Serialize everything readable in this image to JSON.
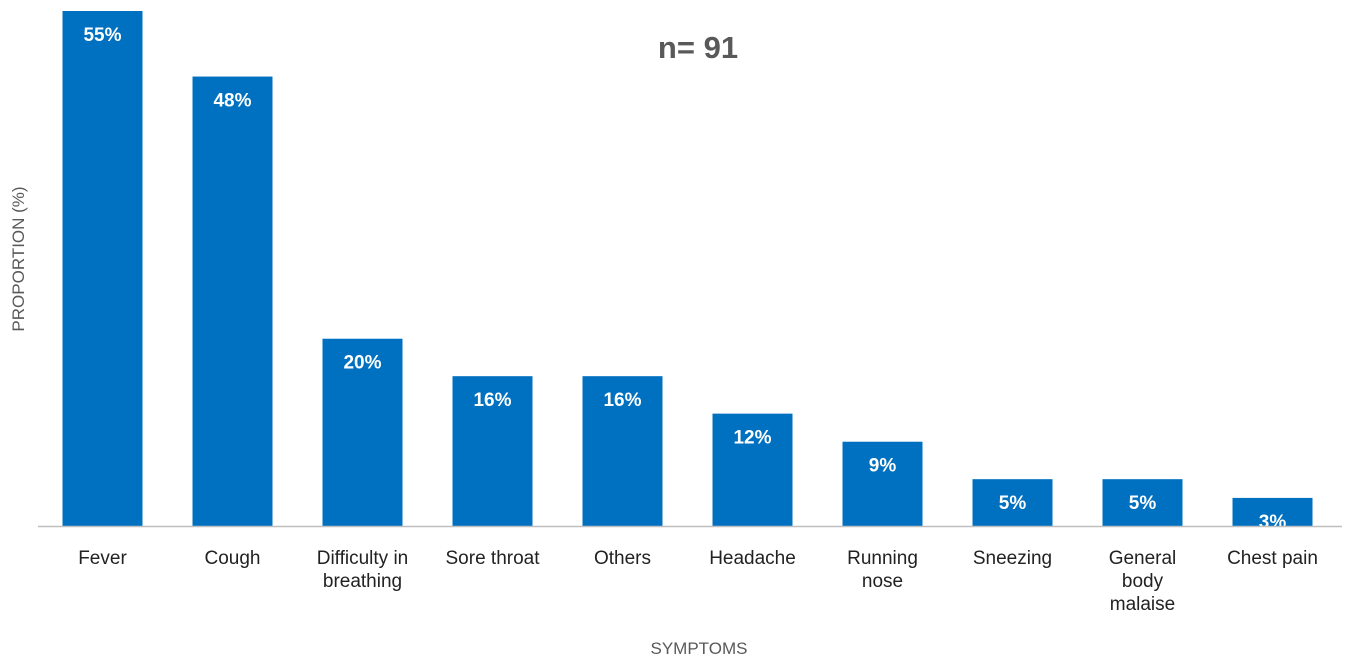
{
  "chart_data": {
    "type": "bar",
    "categories": [
      [
        "Fever"
      ],
      [
        "Cough"
      ],
      [
        "Difficulty in",
        "breathing"
      ],
      [
        "Sore throat"
      ],
      [
        "Others"
      ],
      [
        "Headache"
      ],
      [
        "Running",
        "nose"
      ],
      [
        "Sneezing"
      ],
      [
        "General",
        "body",
        "malaise"
      ],
      [
        "Chest pain"
      ]
    ],
    "values": [
      55,
      48,
      20,
      16,
      16,
      12,
      9,
      5,
      5,
      3
    ],
    "data_labels": [
      "55%",
      "48%",
      "20%",
      "16%",
      "16%",
      "12%",
      "9%",
      "5%",
      "5%",
      "3%"
    ],
    "annotation": "n= 91",
    "xlabel": "SYMPTOMS",
    "ylabel": "PROPORTION (%)",
    "ylim": [
      0,
      55
    ],
    "grid": false,
    "bar_color": "#0070C0",
    "axis_color": "#BFBFBF"
  }
}
